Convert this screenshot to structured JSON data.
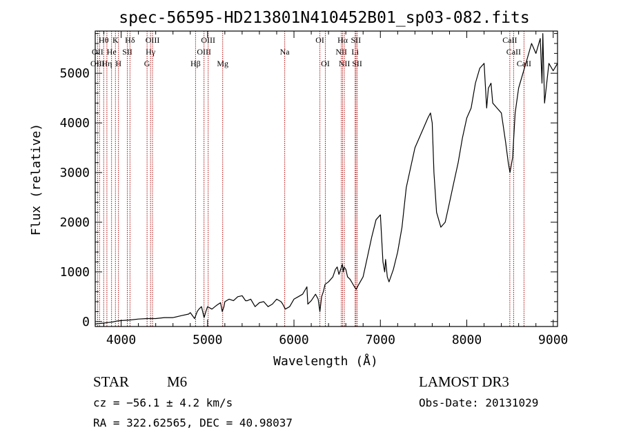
{
  "chart_data": {
    "type": "line",
    "title": "spec-56595-HD213801N410452B01_sp03-082.fits",
    "xlabel": "Wavelength (Å)",
    "ylabel": "Flux (relative)",
    "xlim": [
      3700,
      9050
    ],
    "ylim": [
      -100,
      5850
    ],
    "xticks": [
      4000,
      5000,
      6000,
      7000,
      8000,
      9000
    ],
    "yticks": [
      0,
      1000,
      2000,
      3000,
      4000,
      5000
    ],
    "series": [
      {
        "name": "flux",
        "x": [
          3700,
          3750,
          3800,
          3850,
          3900,
          3950,
          4000,
          4100,
          4200,
          4300,
          4400,
          4500,
          4600,
          4700,
          4780,
          4800,
          4850,
          4880,
          4900,
          4930,
          4960,
          4980,
          5000,
          5050,
          5100,
          5150,
          5170,
          5190,
          5200,
          5250,
          5300,
          5350,
          5400,
          5440,
          5460,
          5500,
          5550,
          5600,
          5650,
          5700,
          5750,
          5800,
          5850,
          5870,
          5900,
          5950,
          6000,
          6050,
          6100,
          6150,
          6160,
          6200,
          6250,
          6280,
          6300,
          6320,
          6340,
          6360,
          6400,
          6450,
          6480,
          6500,
          6520,
          6540,
          6560,
          6570,
          6580,
          6600,
          6620,
          6650,
          6700,
          6720,
          6750,
          6800,
          6850,
          6900,
          6950,
          7000,
          7030,
          7050,
          7060,
          7080,
          7100,
          7150,
          7200,
          7250,
          7300,
          7350,
          7400,
          7450,
          7500,
          7550,
          7580,
          7600,
          7620,
          7650,
          7700,
          7750,
          7800,
          7850,
          7900,
          7950,
          8000,
          8050,
          8100,
          8150,
          8200,
          8230,
          8250,
          8280,
          8300,
          8350,
          8400,
          8450,
          8480,
          8500,
          8530,
          8560,
          8600,
          8650,
          8700,
          8750,
          8800,
          8850,
          8870,
          8880,
          8900,
          8950,
          9000,
          9050
        ],
        "y": [
          -50,
          -40,
          -30,
          -20,
          -10,
          10,
          20,
          30,
          50,
          60,
          60,
          80,
          80,
          120,
          150,
          180,
          60,
          200,
          250,
          300,
          80,
          200,
          300,
          250,
          320,
          380,
          200,
          300,
          400,
          450,
          420,
          500,
          520,
          420,
          420,
          450,
          300,
          380,
          400,
          300,
          350,
          450,
          400,
          350,
          250,
          300,
          450,
          500,
          550,
          700,
          350,
          420,
          550,
          450,
          200,
          500,
          600,
          750,
          800,
          900,
          1050,
          1100,
          950,
          1050,
          1150,
          1000,
          1100,
          1050,
          900,
          850,
          700,
          650,
          750,
          900,
          1300,
          1700,
          2050,
          2150,
          1200,
          1000,
          1250,
          900,
          800,
          1050,
          1400,
          1900,
          2700,
          3100,
          3500,
          3700,
          3900,
          4100,
          4200,
          4000,
          3000,
          2200,
          1900,
          2000,
          2400,
          2800,
          3200,
          3700,
          4100,
          4300,
          4800,
          5100,
          5200,
          4300,
          4700,
          4800,
          4400,
          4300,
          4200,
          3600,
          3200,
          3000,
          3300,
          4200,
          4700,
          5000,
          5300,
          5600,
          5400,
          5700,
          4800,
          5800,
          4400,
          5200,
          5050,
          5200
        ]
      }
    ],
    "line_labels": [
      {
        "label": "Hθ",
        "x": 3798,
        "row": 1
      },
      {
        "label": "K",
        "x": 3934,
        "row": 1
      },
      {
        "label": "Hδ",
        "x": 4102,
        "row": 1
      },
      {
        "label": "OIII",
        "x": 4363,
        "row": 1
      },
      {
        "label": "OIII",
        "x": 5007,
        "row": 1
      },
      {
        "label": "OI",
        "x": 6300,
        "row": 1
      },
      {
        "label": "Hα",
        "x": 6563,
        "row": 1
      },
      {
        "label": "SII",
        "x": 6717,
        "row": 1
      },
      {
        "label": "CaII",
        "x": 8498,
        "row": 1
      },
      {
        "label": "OII",
        "x": 3727,
        "row": 2
      },
      {
        "label": "He",
        "x": 3889,
        "row": 2
      },
      {
        "label": "SII",
        "x": 4072,
        "row": 2
      },
      {
        "label": "Hγ",
        "x": 4340,
        "row": 2
      },
      {
        "label": "OIII",
        "x": 4959,
        "row": 2
      },
      {
        "label": "Na",
        "x": 5893,
        "row": 2
      },
      {
        "label": "NII",
        "x": 6548,
        "row": 2
      },
      {
        "label": "Li",
        "x": 6708,
        "row": 2
      },
      {
        "label": "CaII",
        "x": 8542,
        "row": 2
      },
      {
        "label": "OIII",
        "x": 3727,
        "row": 3
      },
      {
        "label": "Hη",
        "x": 3835,
        "row": 3
      },
      {
        "label": "H",
        "x": 3969,
        "row": 3
      },
      {
        "label": "G",
        "x": 4300,
        "row": 3
      },
      {
        "label": "Hβ",
        "x": 4861,
        "row": 3
      },
      {
        "label": "Mg",
        "x": 5175,
        "row": 3
      },
      {
        "label": "OI",
        "x": 6363,
        "row": 3
      },
      {
        "label": "NII",
        "x": 6583,
        "row": 3
      },
      {
        "label": "SII",
        "x": 6731,
        "row": 3
      },
      {
        "label": "CaII",
        "x": 8662,
        "row": 3
      }
    ],
    "marker_lines_x": [
      3727,
      3750,
      3798,
      3835,
      3889,
      3934,
      3969,
      4072,
      4102,
      4300,
      4340,
      4363,
      4861,
      4959,
      5007,
      5175,
      5893,
      6300,
      6363,
      6548,
      6563,
      6583,
      6708,
      6717,
      6731,
      8498,
      8542,
      8662
    ]
  },
  "info": {
    "object_type": "STAR",
    "subclass": "M6",
    "survey": "LAMOST DR3",
    "cz": "cz = −56.1 ± 4.2 km/s",
    "obs_date": "Obs-Date: 20131029",
    "radec": "RA = 322.62565, DEC =  40.98037"
  },
  "colors": {
    "line": "#000000",
    "marker": "#b00000",
    "background": "#ffffff"
  }
}
